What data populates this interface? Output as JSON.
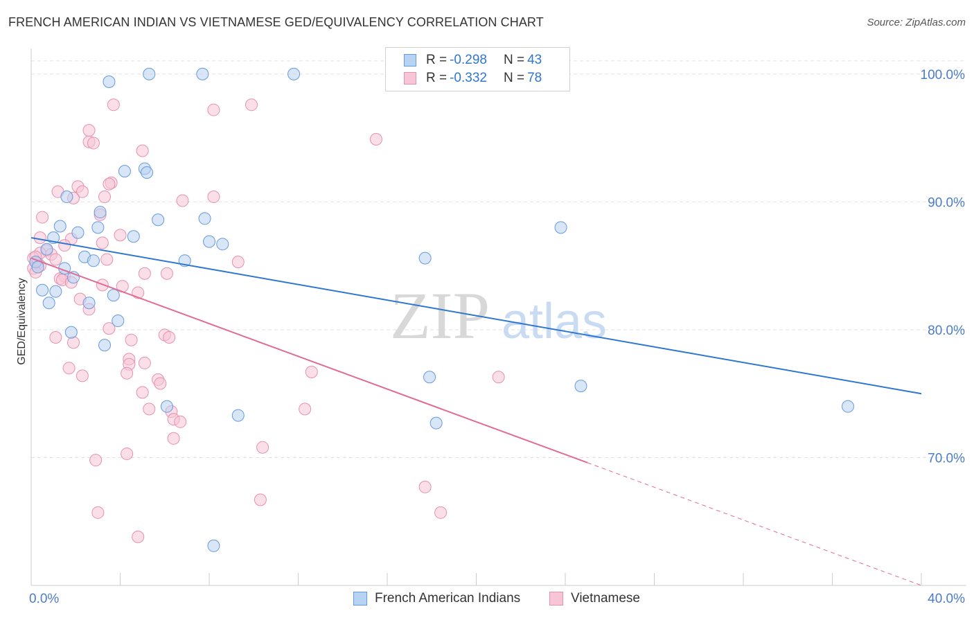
{
  "header": {
    "title": "FRENCH AMERICAN INDIAN VS VIETNAMESE GED/EQUIVALENCY CORRELATION CHART",
    "source": "Source: ZipAtlas.com"
  },
  "legend": {
    "rows": [
      {
        "r_label": "R = ",
        "r_value": "-0.298",
        "n_label": "N = ",
        "n_value": "43"
      },
      {
        "r_label": "R = ",
        "r_value": "-0.332",
        "n_label": "N = ",
        "n_value": "78"
      }
    ]
  },
  "watermark": {
    "zip": "ZIP",
    "atlas": "atlas"
  },
  "colors": {
    "blue_fill": "#b8d2f3",
    "blue_stroke": "#6699dd",
    "blue_line": "#2e77d0",
    "pink_fill": "#f7c5d5",
    "pink_stroke": "#e790ac",
    "pink_line": "#e06c96",
    "axis_label": "#4a7cc7",
    "grid": "#e2e2e2"
  },
  "chart_data": {
    "type": "scatter",
    "title": "FRENCH AMERICAN INDIAN VS VIETNAMESE GED/EQUIVALENCY CORRELATION CHART",
    "xlabel": "",
    "ylabel": "GED/Equivalency",
    "xlim": [
      0,
      40
    ],
    "ylim": [
      60,
      102
    ],
    "x_tick_labels": [
      "0.0%",
      "40.0%"
    ],
    "y_ticks": [
      70,
      80,
      90,
      100
    ],
    "y_tick_labels": [
      "70.0%",
      "80.0%",
      "90.0%",
      "100.0%"
    ],
    "grid": true,
    "legend_position": "top-center",
    "series": [
      {
        "name": "French American Indians",
        "r": -0.298,
        "n": 43,
        "trend": {
          "x": [
            0,
            40
          ],
          "y": [
            87.2,
            75.0
          ]
        },
        "points": [
          [
            3.5,
            99.4
          ],
          [
            5.3,
            100.0
          ],
          [
            7.7,
            100.0
          ],
          [
            11.8,
            100.0
          ],
          [
            4.2,
            92.4
          ],
          [
            5.1,
            92.6
          ],
          [
            5.2,
            92.3
          ],
          [
            1.6,
            90.4
          ],
          [
            1.3,
            88.1
          ],
          [
            3.0,
            88.0
          ],
          [
            2.1,
            87.6
          ],
          [
            3.1,
            89.2
          ],
          [
            5.7,
            88.6
          ],
          [
            7.8,
            88.7
          ],
          [
            4.6,
            87.3
          ],
          [
            1.0,
            87.2
          ],
          [
            8.0,
            86.9
          ],
          [
            8.6,
            86.7
          ],
          [
            0.7,
            86.3
          ],
          [
            2.4,
            85.7
          ],
          [
            2.8,
            85.4
          ],
          [
            6.9,
            85.4
          ],
          [
            0.2,
            85.3
          ],
          [
            0.3,
            84.9
          ],
          [
            1.5,
            84.8
          ],
          [
            1.9,
            84.1
          ],
          [
            0.5,
            83.1
          ],
          [
            1.1,
            83.0
          ],
          [
            3.7,
            82.7
          ],
          [
            0.8,
            82.1
          ],
          [
            2.6,
            82.1
          ],
          [
            3.9,
            80.7
          ],
          [
            1.8,
            79.8
          ],
          [
            3.3,
            78.8
          ],
          [
            17.7,
            85.6
          ],
          [
            23.8,
            88.0
          ],
          [
            17.9,
            76.3
          ],
          [
            24.7,
            75.6
          ],
          [
            36.7,
            74.0
          ],
          [
            6.1,
            74.0
          ],
          [
            9.3,
            73.3
          ],
          [
            18.2,
            72.7
          ],
          [
            8.2,
            63.1
          ]
        ]
      },
      {
        "name": "Vietnamese",
        "r": -0.332,
        "n": 78,
        "trend": {
          "x": [
            0,
            25
          ],
          "y": [
            85.6,
            69.6
          ]
        },
        "trend_dashed": {
          "x": [
            25,
            40
          ],
          "y": [
            69.6,
            60.0
          ]
        },
        "points": [
          [
            3.7,
            97.6
          ],
          [
            8.2,
            97.2
          ],
          [
            9.9,
            97.6
          ],
          [
            15.5,
            94.9
          ],
          [
            2.6,
            95.6
          ],
          [
            2.6,
            94.7
          ],
          [
            2.8,
            94.6
          ],
          [
            5.0,
            94.0
          ],
          [
            3.6,
            91.5
          ],
          [
            3.5,
            91.4
          ],
          [
            2.1,
            91.2
          ],
          [
            1.2,
            90.8
          ],
          [
            2.3,
            90.8
          ],
          [
            1.9,
            90.3
          ],
          [
            3.3,
            90.4
          ],
          [
            8.2,
            90.4
          ],
          [
            6.8,
            90.1
          ],
          [
            0.5,
            88.8
          ],
          [
            3.1,
            89.0
          ],
          [
            4.0,
            87.4
          ],
          [
            0.4,
            87.2
          ],
          [
            1.8,
            87.1
          ],
          [
            3.2,
            86.8
          ],
          [
            1.5,
            86.6
          ],
          [
            0.7,
            86.2
          ],
          [
            0.9,
            85.9
          ],
          [
            0.4,
            86.0
          ],
          [
            0.1,
            85.6
          ],
          [
            1.1,
            85.5
          ],
          [
            3.4,
            85.5
          ],
          [
            9.3,
            85.3
          ],
          [
            0.3,
            85.2
          ],
          [
            5.1,
            84.4
          ],
          [
            6.1,
            84.4
          ],
          [
            1.5,
            84.2
          ],
          [
            1.3,
            84.0
          ],
          [
            1.4,
            83.9
          ],
          [
            1.8,
            83.7
          ],
          [
            3.2,
            83.5
          ],
          [
            4.1,
            83.4
          ],
          [
            4.8,
            82.9
          ],
          [
            2.2,
            82.4
          ],
          [
            2.6,
            81.6
          ],
          [
            3.5,
            80.1
          ],
          [
            6.0,
            79.6
          ],
          [
            6.2,
            79.4
          ],
          [
            1.1,
            79.4
          ],
          [
            4.5,
            79.2
          ],
          [
            1.9,
            79.0
          ],
          [
            4.4,
            77.7
          ],
          [
            4.4,
            77.3
          ],
          [
            5.1,
            77.4
          ],
          [
            1.7,
            77.0
          ],
          [
            4.3,
            76.6
          ],
          [
            12.6,
            76.7
          ],
          [
            21.0,
            76.3
          ],
          [
            2.3,
            76.4
          ],
          [
            5.7,
            76.1
          ],
          [
            5.8,
            75.8
          ],
          [
            5.0,
            75.1
          ],
          [
            5.3,
            73.8
          ],
          [
            6.3,
            73.6
          ],
          [
            12.3,
            73.8
          ],
          [
            6.4,
            73.0
          ],
          [
            6.7,
            72.8
          ],
          [
            6.4,
            71.5
          ],
          [
            10.4,
            70.8
          ],
          [
            4.3,
            70.3
          ],
          [
            2.9,
            69.8
          ],
          [
            17.7,
            67.7
          ],
          [
            10.3,
            66.7
          ],
          [
            3.0,
            65.7
          ],
          [
            18.4,
            65.7
          ],
          [
            4.8,
            63.8
          ],
          [
            0.1,
            84.8
          ],
          [
            0.2,
            85.7
          ],
          [
            0.4,
            85.0
          ],
          [
            0.2,
            84.5
          ]
        ]
      }
    ]
  }
}
